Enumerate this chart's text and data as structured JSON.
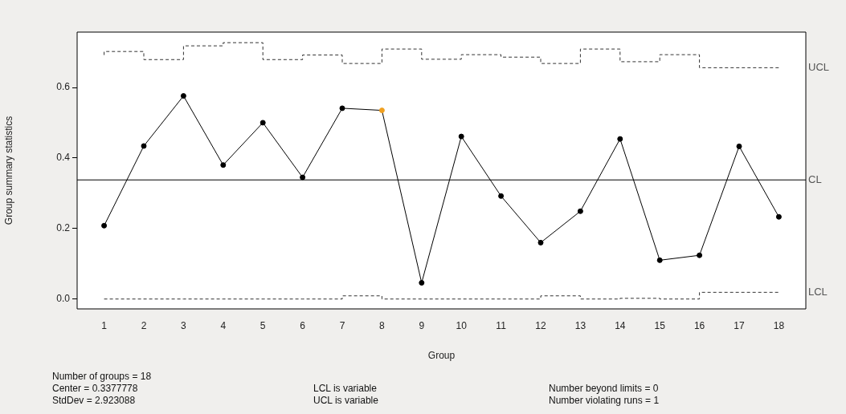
{
  "chart_data": {
    "type": "line",
    "xlabel": "Group",
    "ylabel": "Group summary statistics",
    "x": [
      1,
      2,
      3,
      4,
      5,
      6,
      7,
      8,
      9,
      10,
      11,
      12,
      13,
      14,
      15,
      16,
      17,
      18
    ],
    "series": [
      {
        "type": "line",
        "color": "#000000",
        "colors": [
          "#000000",
          "#000000",
          "#000000",
          "#000000",
          "#000000",
          "#000000",
          "#000000",
          "#f0a020",
          "#000000",
          "#000000",
          "#000000",
          "#000000",
          "#000000",
          "#000000",
          "#000000",
          "#000000",
          "#000000",
          "#000000"
        ],
        "marker": "circle",
        "line_style": "solid",
        "values": [
          0.208,
          0.434,
          0.576,
          0.38,
          0.5,
          0.345,
          0.541,
          0.535,
          0.046,
          0.461,
          0.292,
          0.16,
          0.249,
          0.454,
          0.11,
          0.124,
          0.433,
          0.233
        ]
      },
      {
        "type": "step",
        "name": "UCL",
        "color": "#333333",
        "marker": "none",
        "line_style": "dashed",
        "values": [
          0.692,
          0.702,
          0.679,
          0.718,
          0.727,
          0.679,
          0.692,
          0.668,
          0.709,
          0.68,
          0.693,
          0.686,
          0.668,
          0.709,
          0.673,
          0.693,
          0.656,
          0.656
        ]
      },
      {
        "type": "step",
        "name": "LCL",
        "color": "#333333",
        "marker": "none",
        "line_style": "dashed",
        "values": [
          0,
          0,
          0,
          0,
          0,
          0,
          0,
          0.009,
          0,
          0,
          0,
          0,
          0.009,
          0,
          0.002,
          0,
          0.019,
          0.019
        ]
      }
    ],
    "ref_lines": [
      {
        "axis": "y",
        "value": 0.3377778,
        "label": "CL",
        "color": "#000000"
      }
    ],
    "xlim": [
      0.32,
      18.68
    ],
    "xticks": [
      1,
      2,
      3,
      4,
      5,
      6,
      7,
      8,
      9,
      10,
      11,
      12,
      13,
      14,
      15,
      16,
      17,
      18
    ],
    "ylim": [
      -0.028,
      0.757
    ],
    "yticks": [
      {
        "value": 0,
        "label": "0.0"
      },
      {
        "value": 0.2,
        "label": "0.2"
      },
      {
        "value": 0.4,
        "label": "0.4"
      },
      {
        "value": 0.6,
        "label": "0.6"
      }
    ],
    "grid": false,
    "legend": false,
    "annotations": [
      "Number of groups = 18",
      "Center = 0.3377778",
      "StdDev = 2.923088",
      "LCL is variable",
      "UCL is variable",
      "Number beyond limits = 0",
      "Number violating runs = 1"
    ]
  }
}
